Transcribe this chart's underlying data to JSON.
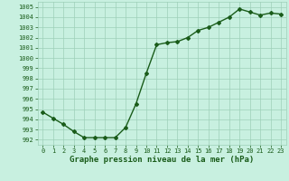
{
  "x": [
    0,
    1,
    2,
    3,
    4,
    5,
    6,
    7,
    8,
    9,
    10,
    11,
    12,
    13,
    14,
    15,
    16,
    17,
    18,
    19,
    20,
    21,
    22,
    23
  ],
  "y": [
    994.7,
    994.1,
    993.5,
    992.8,
    992.2,
    992.2,
    992.2,
    992.2,
    993.2,
    995.5,
    998.5,
    1001.3,
    1001.5,
    1001.6,
    1002.0,
    1002.7,
    1003.0,
    1003.5,
    1004.0,
    1004.8,
    1004.5,
    1004.2,
    1004.4,
    1004.3
  ],
  "ylim": [
    991.5,
    1005.5
  ],
  "yticks": [
    992,
    993,
    994,
    995,
    996,
    997,
    998,
    999,
    1000,
    1001,
    1002,
    1003,
    1004,
    1005
  ],
  "xlim": [
    -0.5,
    23.5
  ],
  "xticks": [
    0,
    1,
    2,
    3,
    4,
    5,
    6,
    7,
    8,
    9,
    10,
    11,
    12,
    13,
    14,
    15,
    16,
    17,
    18,
    19,
    20,
    21,
    22,
    23
  ],
  "xlabel": "Graphe pression niveau de la mer (hPa)",
  "line_color": "#1a5c1a",
  "marker": "D",
  "marker_size": 2.0,
  "bg_color": "#c8f0e0",
  "grid_color": "#9ecfb8",
  "tick_label_fontsize": 5.0,
  "xlabel_fontsize": 6.5,
  "linewidth": 1.0
}
